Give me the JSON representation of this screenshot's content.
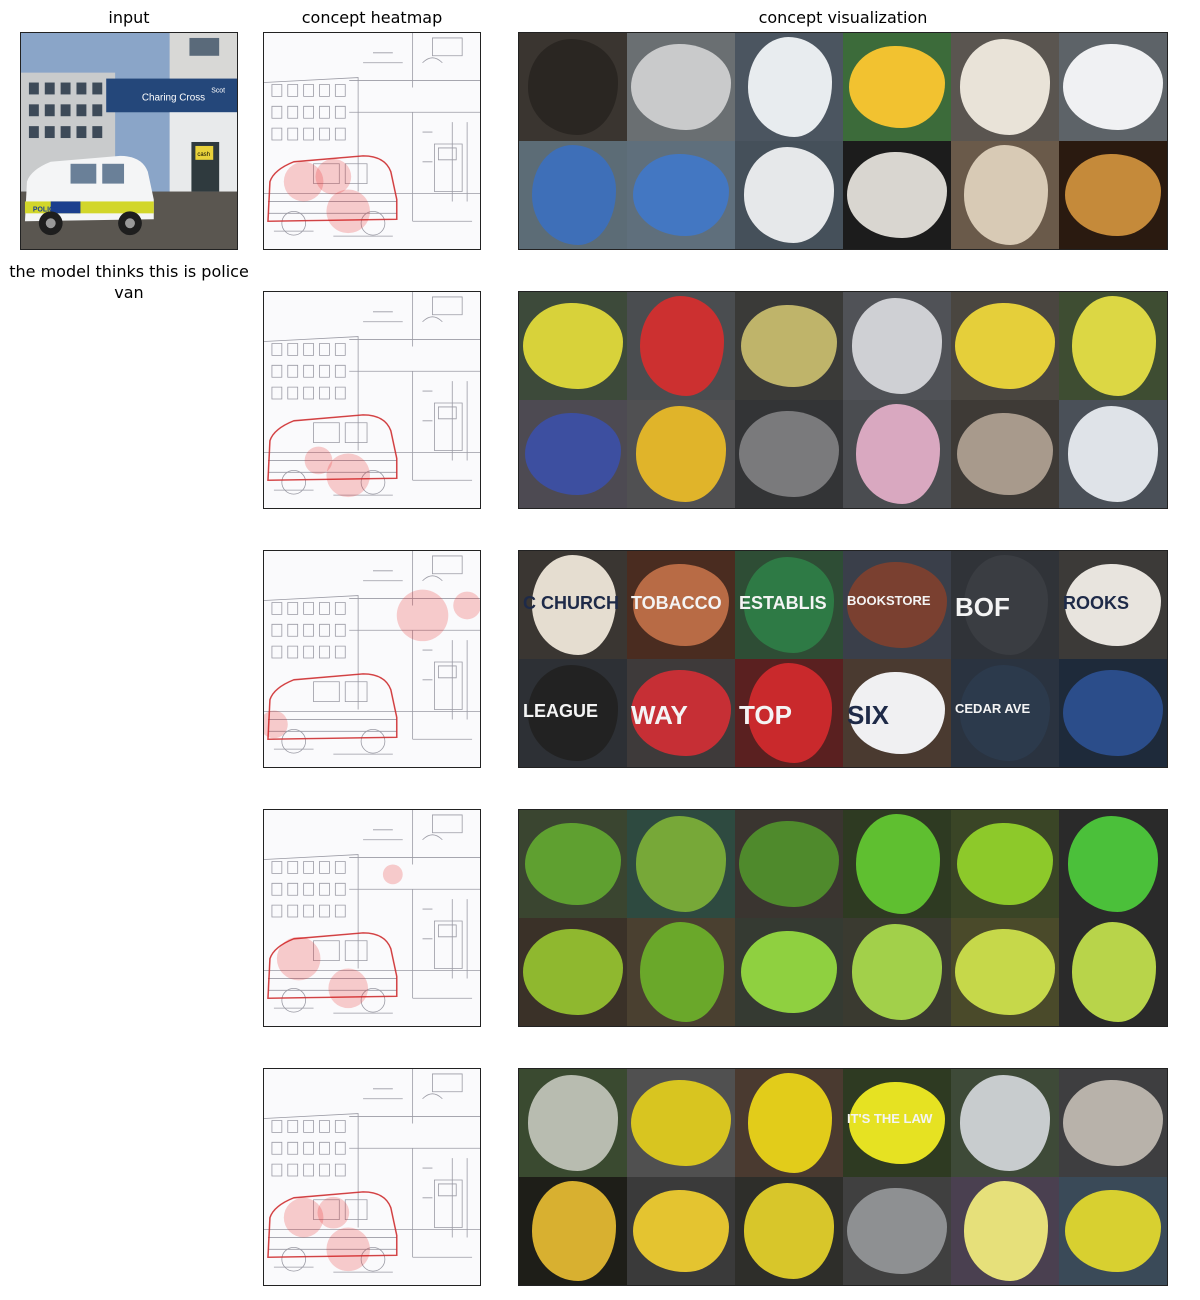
{
  "headers": {
    "input": "input",
    "heatmap": "concept heatmap",
    "visualization": "concept visualization"
  },
  "caption": "the model thinks this is police van",
  "input_image": {
    "signs": [
      "Charing Cross",
      "Scot",
      "cash",
      "POLICE"
    ]
  },
  "concepts": [
    {
      "tiles": [
        {
          "bg": "#3a3530",
          "fg": "#2a2622",
          "word": ""
        },
        {
          "bg": "#6a6f72",
          "fg": "#c9cacb",
          "word": ""
        },
        {
          "bg": "#4b5560",
          "fg": "#e8ecef",
          "word": ""
        },
        {
          "bg": "#3c6b3a",
          "fg": "#f2c230",
          "word": ""
        },
        {
          "bg": "#5a5550",
          "fg": "#e9e3d8",
          "word": ""
        },
        {
          "bg": "#5d6368",
          "fg": "#f0f1f3",
          "word": ""
        },
        {
          "bg": "#5c6c76",
          "fg": "#3e6fb8",
          "word": ""
        },
        {
          "bg": "#5f6f7c",
          "fg": "#4377c2",
          "word": ""
        },
        {
          "bg": "#45505a",
          "fg": "#e6e8ea",
          "word": ""
        },
        {
          "bg": "#1c1c1c",
          "fg": "#d9d6d0",
          "word": ""
        },
        {
          "bg": "#6a5a4a",
          "fg": "#d8cab5",
          "word": ""
        },
        {
          "bg": "#2a1a10",
          "fg": "#c58a3a",
          "word": ""
        }
      ]
    },
    {
      "tiles": [
        {
          "bg": "#3d4a3a",
          "fg": "#d8d23a",
          "word": ""
        },
        {
          "bg": "#4a4d50",
          "fg": "#cc3030",
          "word": ""
        },
        {
          "bg": "#3a3a38",
          "fg": "#bfb46a",
          "word": ""
        },
        {
          "bg": "#505257",
          "fg": "#cfd0d4",
          "word": ""
        },
        {
          "bg": "#4a4640",
          "fg": "#e5cf3a",
          "word": ""
        },
        {
          "bg": "#3e4d32",
          "fg": "#dcd744",
          "word": ""
        },
        {
          "bg": "#4d4a52",
          "fg": "#3d4fa0",
          "word": ""
        },
        {
          "bg": "#505052",
          "fg": "#e0b42a",
          "word": ""
        },
        {
          "bg": "#333436",
          "fg": "#7a7a7c",
          "word": ""
        },
        {
          "bg": "#4a4c50",
          "fg": "#d9a8c0",
          "word": ""
        },
        {
          "bg": "#3e3a36",
          "fg": "#a89a8c",
          "word": ""
        },
        {
          "bg": "#4a5058",
          "fg": "#dfe3e8",
          "word": ""
        }
      ]
    },
    {
      "tiles": [
        {
          "bg": "#3a3632",
          "fg": "#e5ddd0",
          "word": "C CHURCH"
        },
        {
          "bg": "#4a2c20",
          "fg": "#b86b45",
          "word": "TOBACCO"
        },
        {
          "bg": "#2e4d35",
          "fg": "#2e7a45",
          "word": "ESTABLIS"
        },
        {
          "bg": "#3a3f4a",
          "fg": "#7a4030",
          "word": "BOOKSTORE"
        },
        {
          "bg": "#303338",
          "fg": "#3a3d42",
          "word": "BOF"
        },
        {
          "bg": "#3c3a38",
          "fg": "#e8e4de",
          "word": "ROOKS"
        },
        {
          "bg": "#2d3035",
          "fg": "#222",
          "word": "LEAGUE"
        },
        {
          "bg": "#3e3a3a",
          "fg": "#c62f35",
          "word": "WAY"
        },
        {
          "bg": "#5a2020",
          "fg": "#c9292c",
          "word": "TOP"
        },
        {
          "bg": "#4a3a30",
          "fg": "#f0f0f2",
          "word": "SIX"
        },
        {
          "bg": "#2a3340",
          "fg": "#2c3a4c",
          "word": "CEDAR AVE"
        },
        {
          "bg": "#1e2a3a",
          "fg": "#2b4d8a",
          "word": ""
        }
      ]
    },
    {
      "tiles": [
        {
          "bg": "#3a4530",
          "fg": "#5fa030",
          "word": ""
        },
        {
          "bg": "#2e4a40",
          "fg": "#77a838",
          "word": ""
        },
        {
          "bg": "#3a3530",
          "fg": "#4f8a2c",
          "word": ""
        },
        {
          "bg": "#2e3a22",
          "fg": "#5fbf30",
          "word": ""
        },
        {
          "bg": "#3a4526",
          "fg": "#8dc92a",
          "word": ""
        },
        {
          "bg": "#2a2a2a",
          "fg": "#4bc03a",
          "word": ""
        },
        {
          "bg": "#3a3128",
          "fg": "#8fb82f",
          "word": ""
        },
        {
          "bg": "#4a4030",
          "fg": "#6aa82a",
          "word": ""
        },
        {
          "bg": "#353a32",
          "fg": "#8fd040",
          "word": ""
        },
        {
          "bg": "#3a3a30",
          "fg": "#a2d04a",
          "word": ""
        },
        {
          "bg": "#4a4a2a",
          "fg": "#c6d84a",
          "word": ""
        },
        {
          "bg": "#2a2a2a",
          "fg": "#b8d44a",
          "word": ""
        }
      ]
    },
    {
      "tiles": [
        {
          "bg": "#3a4a30",
          "fg": "#b8bcb0",
          "word": ""
        },
        {
          "bg": "#505050",
          "fg": "#d8c520",
          "word": ""
        },
        {
          "bg": "#4a3a30",
          "fg": "#e2cc1a",
          "word": ""
        },
        {
          "bg": "#2e3a22",
          "fg": "#e6e222",
          "word": "IT'S THE LAW"
        },
        {
          "bg": "#3e4a38",
          "fg": "#c8ccce",
          "word": ""
        },
        {
          "bg": "#3e3e40",
          "fg": "#b8b2aa",
          "word": ""
        },
        {
          "bg": "#1e1e18",
          "fg": "#d8b030",
          "word": ""
        },
        {
          "bg": "#3a3a3a",
          "fg": "#e4c430",
          "word": ""
        },
        {
          "bg": "#2e2e2a",
          "fg": "#d8c62a",
          "word": ""
        },
        {
          "bg": "#404040",
          "fg": "#8e9092",
          "word": ""
        },
        {
          "bg": "#4a4050",
          "fg": "#e6e07a",
          "word": ""
        },
        {
          "bg": "#3a4a58",
          "fg": "#d8d030",
          "word": ""
        }
      ]
    }
  ]
}
